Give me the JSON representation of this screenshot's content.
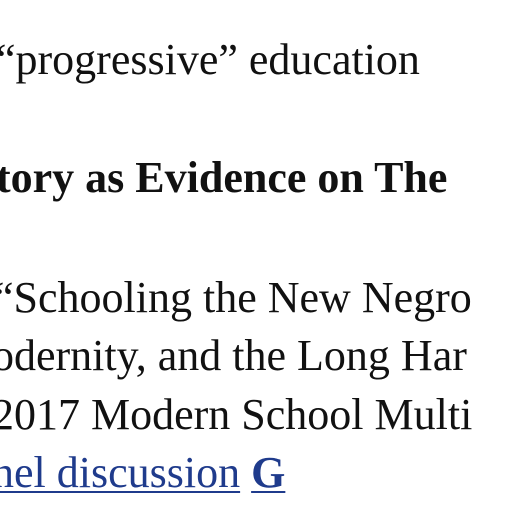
{
  "document": {
    "line1": "“progressive” education",
    "heading": "tory as Evidence on The",
    "line3": "“Schooling the New Negro",
    "line4": "odernity, and the Long Har",
    "line5": "2017 Modern School Multi",
    "link_text": "nel discussion",
    "link_letter": "G"
  }
}
